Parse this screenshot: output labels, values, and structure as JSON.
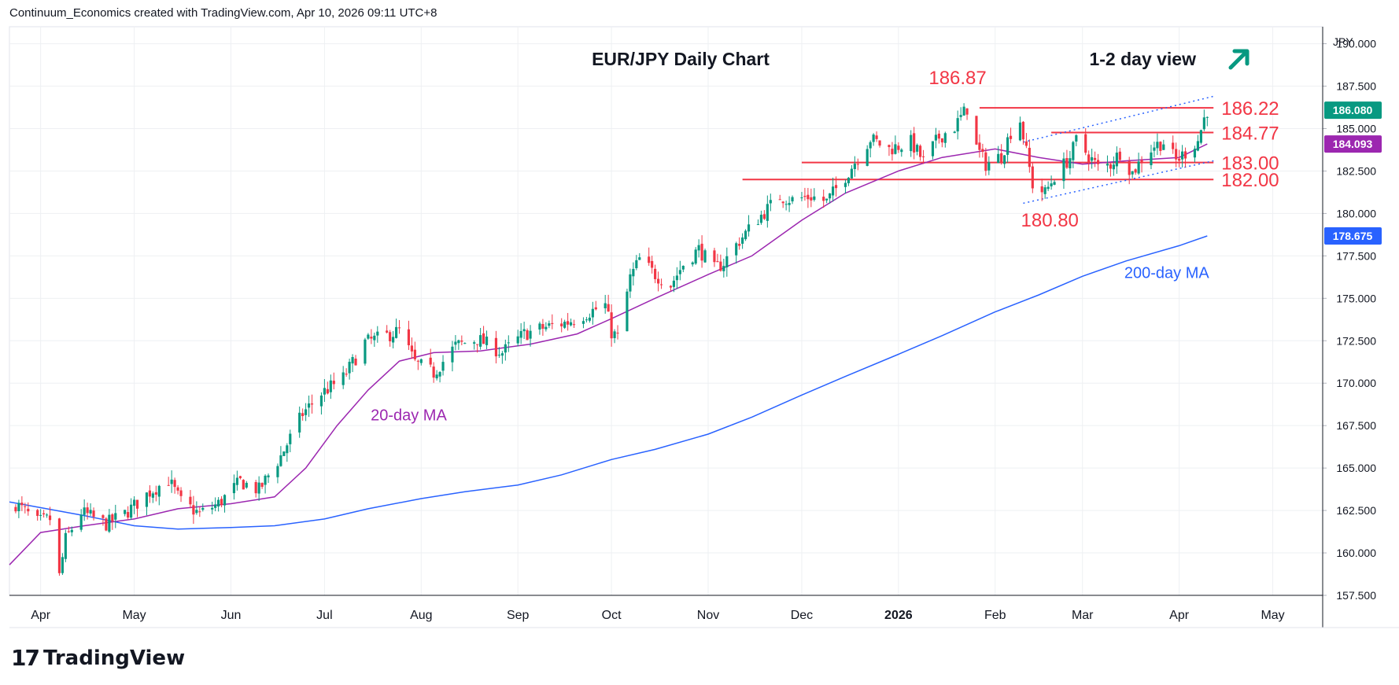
{
  "header": {
    "caption": "Continuum_Economics created with TradingView.com, Apr 10, 2026 09:11 UTC+8"
  },
  "logo": {
    "text": "TradingView",
    "icon": "tradingview-logo-icon"
  },
  "chart_data": {
    "type": "candlestick",
    "title": "EUR/JPY Daily Chart",
    "view": {
      "label": "1-2 day view",
      "icon": "arrow-up-right-icon",
      "color": "#089981"
    },
    "currency": "JPY",
    "y_range": [
      157.5,
      191.0
    ],
    "y_ticks": [
      157.5,
      160.0,
      162.5,
      165.0,
      167.5,
      170.0,
      172.5,
      175.0,
      177.5,
      180.0,
      182.5,
      185.0,
      187.5,
      190.0
    ],
    "y_tick_labels": [
      "157.500",
      "160.000",
      "162.500",
      "165.000",
      "167.500",
      "170.000",
      "172.500",
      "175.000",
      "177.500",
      "180.000",
      "182.500",
      "185.000",
      "187.500",
      "190.000"
    ],
    "x_range": [
      "2025-03-22",
      "2026-05-17"
    ],
    "x_ticks": [
      {
        "label": "Apr",
        "date": "2025-04-01"
      },
      {
        "label": "May",
        "date": "2025-05-01"
      },
      {
        "label": "Jun",
        "date": "2025-06-01"
      },
      {
        "label": "Jul",
        "date": "2025-07-01"
      },
      {
        "label": "Aug",
        "date": "2025-08-01"
      },
      {
        "label": "Sep",
        "date": "2025-09-01"
      },
      {
        "label": "Oct",
        "date": "2025-10-01"
      },
      {
        "label": "Nov",
        "date": "2025-11-01"
      },
      {
        "label": "Dec",
        "date": "2025-12-01"
      },
      {
        "label": "2026",
        "date": "2026-01-01"
      },
      {
        "label": "Feb",
        "date": "2026-02-01"
      },
      {
        "label": "Mar",
        "date": "2026-03-01"
      },
      {
        "label": "Apr",
        "date": "2026-04-01"
      },
      {
        "label": "May",
        "date": "2026-05-01"
      }
    ],
    "colors": {
      "up": "#089981",
      "down": "#f23645",
      "ma20": "#9c27b0",
      "ma200": "#2962ff",
      "level": "#f23645",
      "trend": "#2962ff",
      "axis": "#131722",
      "grid": "#eef0f3"
    },
    "price_path": [
      {
        "date": "2025-03-24",
        "price": 162.9
      },
      {
        "date": "2025-03-31",
        "price": 161.8
      },
      {
        "date": "2025-04-04",
        "price": 162.0
      },
      {
        "date": "2025-04-07",
        "price": 158.6
      },
      {
        "date": "2025-04-09",
        "price": 160.8
      },
      {
        "date": "2025-04-14",
        "price": 162.4
      },
      {
        "date": "2025-04-22",
        "price": 161.7
      },
      {
        "date": "2025-04-28",
        "price": 162.3
      },
      {
        "date": "2025-05-06",
        "price": 163.6
      },
      {
        "date": "2025-05-12",
        "price": 164.3
      },
      {
        "date": "2025-05-16",
        "price": 163.0
      },
      {
        "date": "2025-05-22",
        "price": 162.3
      },
      {
        "date": "2025-05-28",
        "price": 162.9
      },
      {
        "date": "2025-06-04",
        "price": 164.2
      },
      {
        "date": "2025-06-10",
        "price": 163.7
      },
      {
        "date": "2025-06-17",
        "price": 165.7
      },
      {
        "date": "2025-06-24",
        "price": 168.2
      },
      {
        "date": "2025-06-30",
        "price": 169.4
      },
      {
        "date": "2025-07-07",
        "price": 170.3
      },
      {
        "date": "2025-07-14",
        "price": 172.4
      },
      {
        "date": "2025-07-21",
        "price": 172.8
      },
      {
        "date": "2025-07-25",
        "price": 173.1
      },
      {
        "date": "2025-07-30",
        "price": 171.2
      },
      {
        "date": "2025-08-05",
        "price": 170.6
      },
      {
        "date": "2025-08-12",
        "price": 172.2
      },
      {
        "date": "2025-08-19",
        "price": 172.6
      },
      {
        "date": "2025-08-27",
        "price": 171.8
      },
      {
        "date": "2025-09-03",
        "price": 172.9
      },
      {
        "date": "2025-09-10",
        "price": 173.3
      },
      {
        "date": "2025-09-17",
        "price": 173.6
      },
      {
        "date": "2025-09-24",
        "price": 174.2
      },
      {
        "date": "2025-09-29",
        "price": 174.6
      },
      {
        "date": "2025-10-01",
        "price": 173.0
      },
      {
        "date": "2025-10-03",
        "price": 172.7
      },
      {
        "date": "2025-10-07",
        "price": 176.2
      },
      {
        "date": "2025-10-10",
        "price": 177.3
      },
      {
        "date": "2025-10-15",
        "price": 176.4
      },
      {
        "date": "2025-10-20",
        "price": 175.8
      },
      {
        "date": "2025-10-24",
        "price": 177.0
      },
      {
        "date": "2025-10-29",
        "price": 177.9
      },
      {
        "date": "2025-11-03",
        "price": 176.7
      },
      {
        "date": "2025-11-06",
        "price": 177.1
      },
      {
        "date": "2025-11-11",
        "price": 178.4
      },
      {
        "date": "2025-11-17",
        "price": 179.7
      },
      {
        "date": "2025-11-24",
        "price": 181.0
      },
      {
        "date": "2025-11-28",
        "price": 180.8
      },
      {
        "date": "2025-12-04",
        "price": 181.0
      },
      {
        "date": "2025-12-09",
        "price": 180.7
      },
      {
        "date": "2025-12-15",
        "price": 182.2
      },
      {
        "date": "2025-12-19",
        "price": 183.3
      },
      {
        "date": "2025-12-23",
        "price": 184.4
      },
      {
        "date": "2025-12-29",
        "price": 183.8
      },
      {
        "date": "2026-01-05",
        "price": 184.2
      },
      {
        "date": "2026-01-09",
        "price": 183.1
      },
      {
        "date": "2026-01-14",
        "price": 184.5
      },
      {
        "date": "2026-01-19",
        "price": 185.1
      },
      {
        "date": "2026-01-23",
        "price": 186.2
      },
      {
        "date": "2026-01-26",
        "price": 183.9
      },
      {
        "date": "2026-01-29",
        "price": 182.9
      },
      {
        "date": "2026-02-03",
        "price": 183.4
      },
      {
        "date": "2026-02-06",
        "price": 184.8
      },
      {
        "date": "2026-02-09",
        "price": 185.5
      },
      {
        "date": "2026-02-11",
        "price": 183.6
      },
      {
        "date": "2026-02-13",
        "price": 181.7
      },
      {
        "date": "2026-02-17",
        "price": 181.2
      },
      {
        "date": "2026-02-20",
        "price": 182.2
      },
      {
        "date": "2026-02-25",
        "price": 183.3
      },
      {
        "date": "2026-02-27",
        "price": 184.3
      },
      {
        "date": "2026-03-03",
        "price": 183.4
      },
      {
        "date": "2026-03-06",
        "price": 182.7
      },
      {
        "date": "2026-03-10",
        "price": 182.9
      },
      {
        "date": "2026-03-13",
        "price": 183.6
      },
      {
        "date": "2026-03-17",
        "price": 182.4
      },
      {
        "date": "2026-03-20",
        "price": 183.2
      },
      {
        "date": "2026-03-24",
        "price": 184.0
      },
      {
        "date": "2026-03-27",
        "price": 184.2
      },
      {
        "date": "2026-03-31",
        "price": 183.1
      },
      {
        "date": "2026-04-03",
        "price": 183.6
      },
      {
        "date": "2026-04-07",
        "price": 184.3
      },
      {
        "date": "2026-04-09",
        "price": 185.6
      },
      {
        "date": "2026-04-10",
        "price": 186.08
      }
    ],
    "ma20": [
      {
        "date": "2025-03-22",
        "value": 159.3
      },
      {
        "date": "2025-04-01",
        "value": 161.2
      },
      {
        "date": "2025-04-15",
        "value": 161.6
      },
      {
        "date": "2025-05-01",
        "value": 162.0
      },
      {
        "date": "2025-05-15",
        "value": 162.6
      },
      {
        "date": "2025-06-01",
        "value": 162.9
      },
      {
        "date": "2025-06-15",
        "value": 163.3
      },
      {
        "date": "2025-06-25",
        "value": 165.0
      },
      {
        "date": "2025-07-05",
        "value": 167.5
      },
      {
        "date": "2025-07-15",
        "value": 169.6
      },
      {
        "date": "2025-07-25",
        "value": 171.3
      },
      {
        "date": "2025-08-05",
        "value": 171.8
      },
      {
        "date": "2025-08-20",
        "value": 171.9
      },
      {
        "date": "2025-09-05",
        "value": 172.3
      },
      {
        "date": "2025-09-20",
        "value": 172.9
      },
      {
        "date": "2025-10-01",
        "value": 173.8
      },
      {
        "date": "2025-10-15",
        "value": 175.0
      },
      {
        "date": "2025-11-01",
        "value": 176.4
      },
      {
        "date": "2025-11-15",
        "value": 177.5
      },
      {
        "date": "2025-12-01",
        "value": 179.6
      },
      {
        "date": "2025-12-15",
        "value": 181.2
      },
      {
        "date": "2026-01-01",
        "value": 182.5
      },
      {
        "date": "2026-01-15",
        "value": 183.3
      },
      {
        "date": "2026-02-01",
        "value": 183.8
      },
      {
        "date": "2026-02-15",
        "value": 183.3
      },
      {
        "date": "2026-03-01",
        "value": 182.9
      },
      {
        "date": "2026-03-15",
        "value": 183.1
      },
      {
        "date": "2026-04-01",
        "value": 183.3
      },
      {
        "date": "2026-04-10",
        "value": 184.093
      }
    ],
    "ma200": [
      {
        "date": "2025-03-22",
        "value": 163.0
      },
      {
        "date": "2025-04-15",
        "value": 162.2
      },
      {
        "date": "2025-05-01",
        "value": 161.6
      },
      {
        "date": "2025-05-15",
        "value": 161.4
      },
      {
        "date": "2025-06-01",
        "value": 161.5
      },
      {
        "date": "2025-06-15",
        "value": 161.6
      },
      {
        "date": "2025-07-01",
        "value": 162.0
      },
      {
        "date": "2025-07-15",
        "value": 162.6
      },
      {
        "date": "2025-08-01",
        "value": 163.2
      },
      {
        "date": "2025-08-15",
        "value": 163.6
      },
      {
        "date": "2025-09-01",
        "value": 164.0
      },
      {
        "date": "2025-09-15",
        "value": 164.6
      },
      {
        "date": "2025-10-01",
        "value": 165.5
      },
      {
        "date": "2025-10-15",
        "value": 166.1
      },
      {
        "date": "2025-11-01",
        "value": 167.0
      },
      {
        "date": "2025-11-15",
        "value": 168.0
      },
      {
        "date": "2025-12-01",
        "value": 169.3
      },
      {
        "date": "2025-12-15",
        "value": 170.4
      },
      {
        "date": "2026-01-01",
        "value": 171.7
      },
      {
        "date": "2026-01-15",
        "value": 172.8
      },
      {
        "date": "2026-02-01",
        "value": 174.2
      },
      {
        "date": "2026-02-15",
        "value": 175.2
      },
      {
        "date": "2026-03-01",
        "value": 176.3
      },
      {
        "date": "2026-03-15",
        "value": 177.2
      },
      {
        "date": "2026-04-01",
        "value": 178.1
      },
      {
        "date": "2026-04-10",
        "value": 178.675
      }
    ],
    "levels": [
      {
        "price": 186.22,
        "label": "186.22",
        "start": "2026-01-27",
        "end": "2026-04-12"
      },
      {
        "price": 184.77,
        "label": "184.77",
        "start": "2026-02-19",
        "end": "2026-04-12"
      },
      {
        "price": 183.0,
        "label": "183.00",
        "start": "2025-12-01",
        "end": "2026-04-12"
      },
      {
        "price": 182.0,
        "label": "182.00",
        "start": "2025-11-12",
        "end": "2026-04-12"
      }
    ],
    "peak_labels": [
      {
        "label": "186.87",
        "date": "2026-01-23",
        "price": 186.87
      },
      {
        "label": "180.80",
        "date": "2026-02-16",
        "price": 180.8
      }
    ],
    "trend_channel": [
      {
        "start": {
          "date": "2026-02-10",
          "price": 184.2
        },
        "end": {
          "date": "2026-04-12",
          "price": 186.9
        }
      },
      {
        "start": {
          "date": "2026-02-10",
          "price": 180.6
        },
        "end": {
          "date": "2026-04-12",
          "price": 183.1
        }
      }
    ],
    "price_badges": [
      {
        "label": "186.080",
        "value": 186.08,
        "color": "#089981"
      },
      {
        "label": "184.093",
        "value": 184.093,
        "color": "#9c27b0"
      },
      {
        "label": "178.675",
        "value": 178.675,
        "color": "#2962ff"
      }
    ],
    "annotations": [
      {
        "label": "20-day MA",
        "date": "2025-07-28",
        "price": 167.8,
        "color": "#9c27b0"
      },
      {
        "label": "200-day MA",
        "date": "2026-03-28",
        "price": 176.2,
        "color": "#2962ff"
      }
    ]
  }
}
